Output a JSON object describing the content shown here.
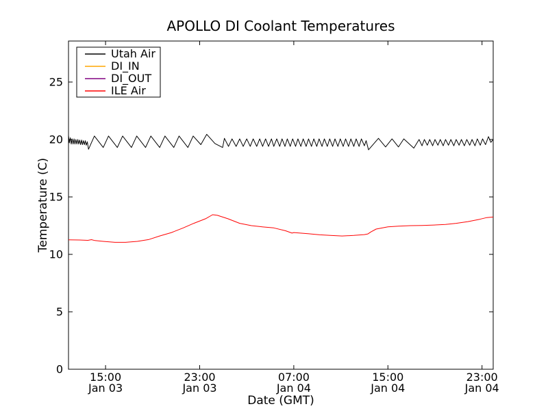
{
  "figure": {
    "background": "#ffffff",
    "axis_color": "#000000"
  },
  "chart_data": {
    "type": "line",
    "title": "APOLLO DI Coolant Temperatures",
    "xlabel": "Date (GMT)",
    "ylabel": "Temperature (C)",
    "x_unit": "hours since Jan 03 00:00 GMT",
    "xlim": [
      11.85,
      47.95
    ],
    "ylim": [
      0,
      28.57
    ],
    "grid": false,
    "legend_position": "upper left",
    "yticks": [
      {
        "v": 0,
        "label": "0"
      },
      {
        "v": 5,
        "label": "5"
      },
      {
        "v": 10,
        "label": "10"
      },
      {
        "v": 15,
        "label": "15"
      },
      {
        "v": 20,
        "label": "20"
      },
      {
        "v": 25,
        "label": "25"
      }
    ],
    "xticks": [
      {
        "h": 15,
        "time": "15:00",
        "date": "Jan 03"
      },
      {
        "h": 23,
        "time": "23:00",
        "date": "Jan 03"
      },
      {
        "h": 31,
        "time": "07:00",
        "date": "Jan 04"
      },
      {
        "h": 39,
        "time": "15:00",
        "date": "Jan 04"
      },
      {
        "h": 47,
        "time": "23:00",
        "date": "Jan 04"
      }
    ],
    "series": [
      {
        "name": "Utah Air",
        "color": "#000000",
        "points": [
          [
            11.85,
            20.35
          ],
          [
            11.92,
            19.7
          ],
          [
            12.0,
            20.15
          ],
          [
            12.08,
            19.6
          ],
          [
            12.16,
            20.05
          ],
          [
            12.24,
            19.6
          ],
          [
            12.32,
            20.05
          ],
          [
            12.4,
            19.6
          ],
          [
            12.48,
            20.0
          ],
          [
            12.56,
            19.6
          ],
          [
            12.64,
            20.0
          ],
          [
            12.72,
            19.6
          ],
          [
            12.8,
            19.95
          ],
          [
            12.88,
            19.55
          ],
          [
            12.96,
            19.95
          ],
          [
            13.04,
            19.55
          ],
          [
            13.12,
            19.9
          ],
          [
            13.2,
            19.55
          ],
          [
            13.28,
            19.9
          ],
          [
            13.36,
            19.5
          ],
          [
            13.45,
            19.8
          ],
          [
            13.55,
            19.15
          ],
          [
            14.05,
            20.3
          ],
          [
            14.8,
            19.3
          ],
          [
            15.25,
            20.3
          ],
          [
            16.0,
            19.3
          ],
          [
            16.45,
            20.3
          ],
          [
            17.2,
            19.3
          ],
          [
            17.65,
            20.3
          ],
          [
            18.4,
            19.3
          ],
          [
            18.85,
            20.3
          ],
          [
            19.6,
            19.3
          ],
          [
            20.05,
            20.3
          ],
          [
            20.8,
            19.3
          ],
          [
            21.25,
            20.3
          ],
          [
            22.0,
            19.3
          ],
          [
            22.45,
            20.3
          ],
          [
            23.1,
            19.55
          ],
          [
            23.6,
            20.45
          ],
          [
            24.3,
            19.65
          ],
          [
            24.95,
            19.3
          ],
          [
            25.1,
            20.1
          ],
          [
            25.45,
            19.4
          ],
          [
            25.75,
            20.05
          ],
          [
            26.1,
            19.4
          ],
          [
            26.4,
            20.05
          ],
          [
            26.7,
            19.4
          ],
          [
            27.0,
            20.05
          ],
          [
            27.3,
            19.4
          ],
          [
            27.55,
            20.05
          ],
          [
            27.85,
            19.4
          ],
          [
            28.1,
            20.05
          ],
          [
            28.35,
            19.4
          ],
          [
            28.6,
            20.05
          ],
          [
            28.85,
            19.4
          ],
          [
            29.1,
            20.05
          ],
          [
            29.3,
            19.4
          ],
          [
            29.55,
            20.05
          ],
          [
            29.8,
            19.4
          ],
          [
            30.0,
            20.05
          ],
          [
            30.25,
            19.4
          ],
          [
            30.45,
            20.05
          ],
          [
            30.7,
            19.4
          ],
          [
            30.9,
            20.05
          ],
          [
            31.15,
            19.4
          ],
          [
            31.35,
            20.05
          ],
          [
            31.6,
            19.4
          ],
          [
            31.8,
            20.05
          ],
          [
            32.05,
            19.4
          ],
          [
            32.25,
            20.05
          ],
          [
            32.5,
            19.4
          ],
          [
            32.7,
            20.05
          ],
          [
            32.95,
            19.4
          ],
          [
            33.15,
            20.05
          ],
          [
            33.4,
            19.4
          ],
          [
            33.6,
            20.05
          ],
          [
            33.85,
            19.4
          ],
          [
            34.05,
            20.05
          ],
          [
            34.3,
            19.4
          ],
          [
            34.5,
            20.05
          ],
          [
            34.75,
            19.4
          ],
          [
            34.95,
            20.05
          ],
          [
            35.2,
            19.4
          ],
          [
            35.4,
            20.05
          ],
          [
            35.65,
            19.4
          ],
          [
            35.85,
            20.05
          ],
          [
            36.1,
            19.4
          ],
          [
            36.3,
            20.05
          ],
          [
            36.55,
            19.4
          ],
          [
            36.75,
            20.05
          ],
          [
            37.0,
            19.45
          ],
          [
            37.15,
            19.9
          ],
          [
            37.35,
            19.1
          ],
          [
            38.2,
            20.1
          ],
          [
            38.8,
            19.35
          ],
          [
            39.35,
            20.05
          ],
          [
            39.9,
            19.35
          ],
          [
            40.35,
            20.05
          ],
          [
            41.2,
            19.25
          ],
          [
            41.65,
            20.0
          ],
          [
            41.9,
            19.45
          ],
          [
            42.1,
            20.0
          ],
          [
            42.35,
            19.5
          ],
          [
            42.55,
            20.0
          ],
          [
            42.8,
            19.45
          ],
          [
            43.0,
            20.0
          ],
          [
            43.25,
            19.5
          ],
          [
            43.45,
            20.0
          ],
          [
            43.7,
            19.45
          ],
          [
            43.9,
            20.0
          ],
          [
            44.15,
            19.5
          ],
          [
            44.35,
            20.0
          ],
          [
            44.6,
            19.45
          ],
          [
            44.8,
            20.0
          ],
          [
            45.05,
            19.5
          ],
          [
            45.25,
            20.0
          ],
          [
            45.5,
            19.45
          ],
          [
            45.7,
            20.0
          ],
          [
            45.95,
            19.5
          ],
          [
            46.15,
            20.0
          ],
          [
            46.4,
            19.45
          ],
          [
            46.6,
            20.05
          ],
          [
            46.85,
            19.5
          ],
          [
            47.05,
            20.05
          ],
          [
            47.3,
            19.55
          ],
          [
            47.55,
            20.25
          ],
          [
            47.75,
            19.75
          ],
          [
            47.95,
            20.0
          ]
        ]
      },
      {
        "name": "DI_IN",
        "color": "#ffa500",
        "points": [],
        "note": "in legend only; no line visible within plot range"
      },
      {
        "name": "DI_OUT",
        "color": "#800080",
        "points": [],
        "note": "in legend only; no line visible within plot range"
      },
      {
        "name": "ILE Air",
        "color": "#ff0000",
        "points": [
          [
            11.85,
            11.27
          ],
          [
            12.8,
            11.25
          ],
          [
            13.5,
            11.22
          ],
          [
            13.8,
            11.28
          ],
          [
            14.1,
            11.2
          ],
          [
            14.8,
            11.13
          ],
          [
            15.8,
            11.05
          ],
          [
            16.7,
            11.05
          ],
          [
            17.7,
            11.13
          ],
          [
            18.7,
            11.3
          ],
          [
            19.6,
            11.6
          ],
          [
            20.6,
            11.9
          ],
          [
            21.6,
            12.3
          ],
          [
            22.5,
            12.7
          ],
          [
            23.5,
            13.1
          ],
          [
            24.1,
            13.45
          ],
          [
            24.5,
            13.4
          ],
          [
            25.4,
            13.1
          ],
          [
            26.4,
            12.7
          ],
          [
            27.4,
            12.5
          ],
          [
            28.3,
            12.4
          ],
          [
            29.3,
            12.3
          ],
          [
            30.3,
            12.05
          ],
          [
            30.85,
            11.85
          ],
          [
            31.0,
            11.9
          ],
          [
            32.2,
            11.8
          ],
          [
            33.2,
            11.7
          ],
          [
            34.1,
            11.65
          ],
          [
            35.1,
            11.6
          ],
          [
            36.1,
            11.65
          ],
          [
            37.0,
            11.72
          ],
          [
            37.3,
            11.78
          ],
          [
            37.55,
            11.95
          ],
          [
            38.0,
            12.2
          ],
          [
            39.0,
            12.4
          ],
          [
            39.9,
            12.45
          ],
          [
            40.9,
            12.5
          ],
          [
            41.9,
            12.52
          ],
          [
            42.9,
            12.55
          ],
          [
            43.9,
            12.6
          ],
          [
            44.8,
            12.7
          ],
          [
            45.8,
            12.85
          ],
          [
            46.8,
            13.05
          ],
          [
            47.4,
            13.2
          ],
          [
            47.95,
            13.25
          ]
        ]
      }
    ]
  }
}
